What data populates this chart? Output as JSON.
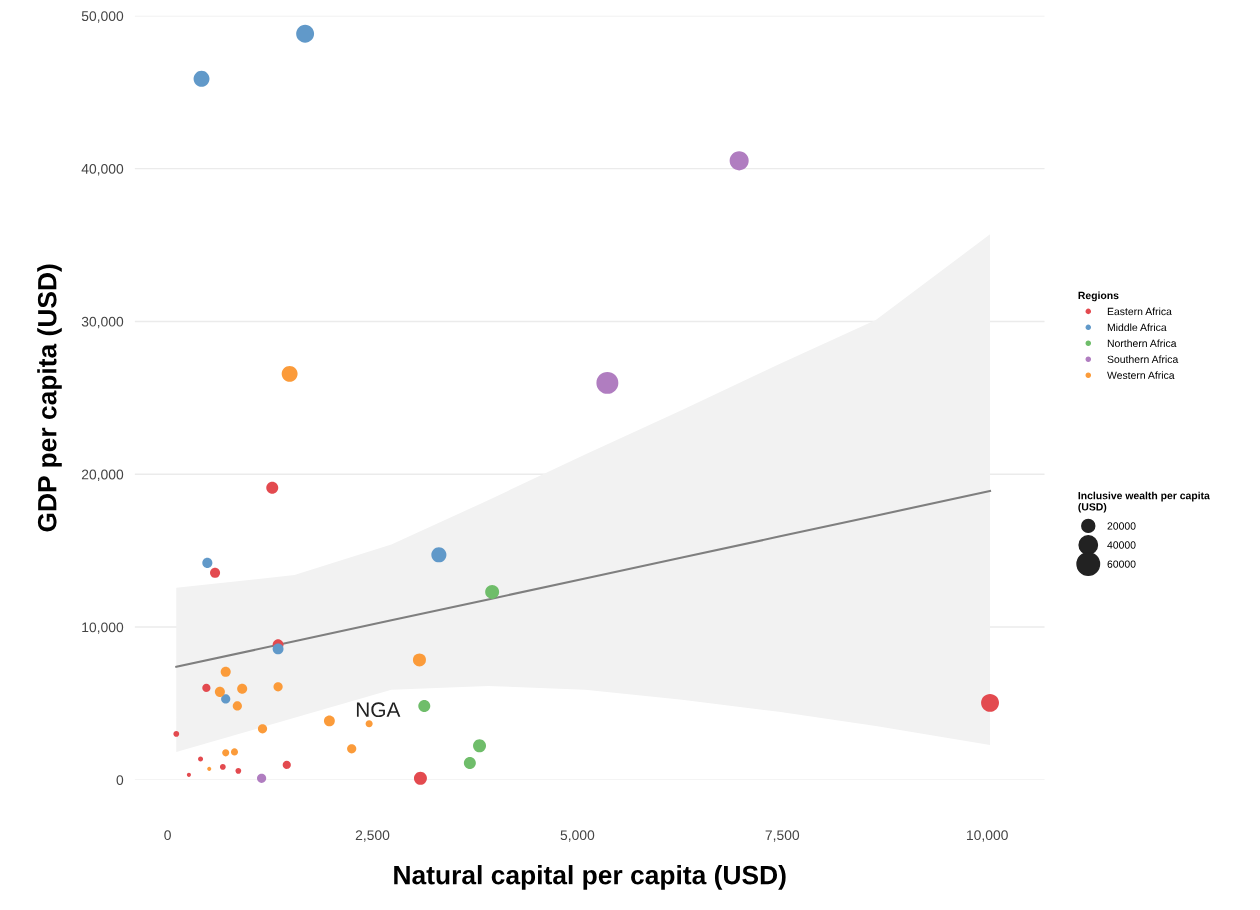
{
  "chart_data": {
    "type": "bubble",
    "xlabel": "Natural capital per capita (USD)",
    "ylabel": "GDP per capita (USD)",
    "legend_title": "Regions",
    "size_legend": [
      20000,
      40000,
      60000
    ],
    "xlim": [
      -400,
      10700
    ],
    "xticks": [
      {
        "value": 0,
        "label": "0"
      },
      {
        "value": 2500,
        "label": "2,500"
      },
      {
        "value": 5000,
        "label": "5,000"
      },
      {
        "value": 7500,
        "label": "7,500"
      },
      {
        "value": 10000,
        "label": "10,000"
      }
    ],
    "ylim": [
      0,
      50000
    ],
    "yticks": [
      {
        "value": 0,
        "label": "0"
      },
      {
        "value": 10000,
        "label": "10,000"
      },
      {
        "value": 20000,
        "label": "20,000"
      },
      {
        "value": 30000,
        "label": "30,000"
      },
      {
        "value": 40000,
        "label": "40,000"
      },
      {
        "value": 50000,
        "label": "50,000"
      }
    ],
    "grid": "y",
    "legend": "right",
    "series": [
      {
        "type": "line",
        "color": "#7f7f7f",
        "x": [
          106,
          1548,
          2730,
          3912,
          5094,
          6277,
          7459,
          8641,
          10035
        ],
        "values": [
          7400,
          9070,
          10440,
          11810,
          13180,
          14550,
          15920,
          17290,
          18900
        ],
        "lower": [
          1830,
          4060,
          5900,
          6150,
          5900,
          5240,
          4450,
          3530,
          2290
        ],
        "upper": [
          12570,
          13400,
          15400,
          18300,
          21300,
          24200,
          27200,
          30100,
          35700
        ]
      },
      {
        "name": "Eastern Africa",
        "color": "#e34a4f",
        "x": [
          106,
          402,
          260,
          674,
          863,
          1454,
          473,
          579,
          1277,
          1348,
          3085,
          10035
        ],
        "values": [
          3010,
          1370,
          330,
          850,
          590,
          980,
          6020,
          13550,
          19110,
          8840,
          100,
          5040
        ],
        "sizes": [
          4000,
          3000,
          2000,
          4000,
          4000,
          8000,
          8000,
          12000,
          17000,
          14000,
          20000,
          38000
        ]
      },
      {
        "name": "Middle Africa",
        "color": "#6199c9",
        "x": [
          414,
          1678,
          485,
          1348,
          709,
          3310
        ],
        "values": [
          45880,
          48830,
          14200,
          8570,
          5300,
          14730
        ],
        "sizes": [
          30000,
          38000,
          12000,
          14000,
          10000,
          27000
        ]
      },
      {
        "name": "Northern Africa",
        "color": "#6fbd6a",
        "x": [
          3960,
          3132,
          3806,
          3688
        ],
        "values": [
          12300,
          4840,
          2230,
          1110
        ],
        "sizes": [
          23000,
          17000,
          20000,
          17000
        ]
      },
      {
        "name": "Southern Africa",
        "color": "#b07dc0",
        "x": [
          6974,
          5366,
          1147
        ],
        "values": [
          40510,
          25980,
          100
        ],
        "sizes": [
          43000,
          57000,
          10000
        ]
      },
      {
        "name": "Western Africa",
        "color": "#fb9b3a",
        "x": [
          1489,
          709,
          638,
          910,
          851,
          1348,
          1158,
          1974,
          2459,
          2246,
          3073,
          709,
          816,
          508
        ],
        "values": [
          26570,
          7070,
          5760,
          5960,
          4840,
          6090,
          3340,
          3860,
          3670,
          2030,
          7850,
          1770,
          1830,
          720
        ],
        "sizes": [
          30000,
          12000,
          12000,
          12000,
          10000,
          10000,
          10000,
          14000,
          6000,
          10000,
          20000,
          6000,
          6000,
          2000
        ]
      }
    ],
    "annotations": [
      {
        "text": "NGA",
        "x": 2459,
        "y": 3670
      },
      "Inclusive wealth per capita\n(USD)"
    ]
  }
}
